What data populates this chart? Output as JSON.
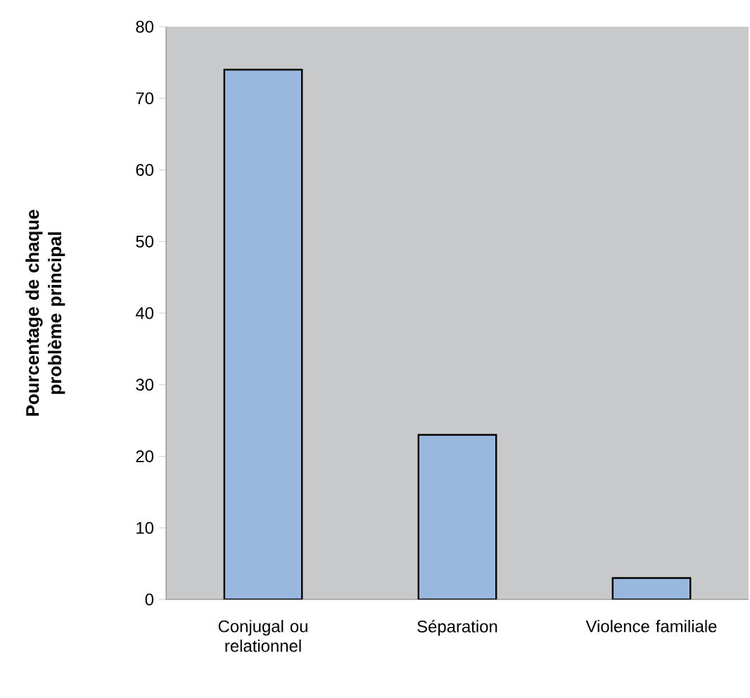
{
  "chart_data": {
    "type": "bar",
    "ylabel": "Pourcentage de chaque problème principal",
    "categories": [
      "Conjugal ou relationnel",
      "Séparation",
      "Violence familiale"
    ],
    "values": [
      74,
      23,
      3
    ],
    "color": "#99b8e0",
    "ylim": [
      0,
      80
    ],
    "yticks": [
      0,
      10,
      20,
      30,
      40,
      50,
      60,
      70,
      80
    ],
    "grid": false
  }
}
